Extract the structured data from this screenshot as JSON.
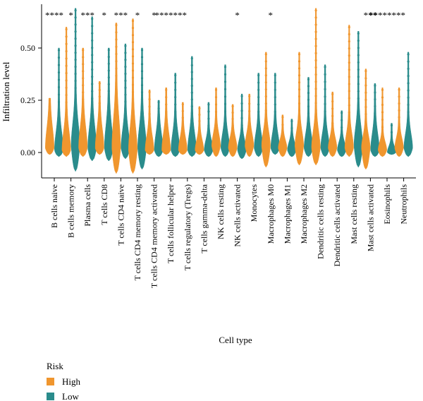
{
  "chart_data": {
    "type": "violin",
    "ylabel": "Infiltration level",
    "xlabel": "Cell type",
    "yticks": [
      "0.00",
      "0.25",
      "0.50"
    ],
    "ylim": [
      -0.1,
      0.72
    ],
    "legend": {
      "title": "Risk",
      "placement": "bottom-left",
      "entries": [
        {
          "name": "High",
          "color": "#F0962E"
        },
        {
          "name": "Low",
          "color": "#2A8C8C"
        }
      ]
    },
    "categories": [
      "B cells naive",
      "B cells memory",
      "Plasma cells",
      "T cells CD8",
      "T cells CD4 naive",
      "T cells CD4 memory resting",
      "T cells CD4 memory activated",
      "T cells follicular helper",
      "T cells regulatory (Tregs)",
      "T cells gamma-delta",
      "NK cells resting",
      "NK cells activated",
      "Monocytes",
      "Macrophages M0",
      "Macrophages M1",
      "Macrophages M2",
      "Dendritic cells resting",
      "Dendritic cells activated",
      "Mast cells resting",
      "Mast cells activated",
      "Eosinophils",
      "Neutrophils"
    ],
    "significance": [
      "****",
      "*",
      "***",
      "*",
      "***",
      "*",
      "*",
      "*******",
      "",
      "",
      "",
      "*",
      "",
      "*",
      "",
      "",
      "",
      "",
      "",
      "***",
      "********",
      ""
    ],
    "series": [
      {
        "name": "High",
        "min": [
          -0.01,
          -0.02,
          -0.02,
          -0.01,
          -0.1,
          -0.1,
          -0.01,
          -0.01,
          -0.01,
          -0.01,
          -0.02,
          -0.02,
          -0.02,
          -0.07,
          -0.02,
          -0.06,
          -0.06,
          -0.02,
          -0.02,
          -0.08,
          -0.02,
          -0.02
        ],
        "max": [
          0.26,
          0.6,
          0.5,
          0.34,
          0.62,
          0.64,
          0.3,
          0.31,
          0.24,
          0.22,
          0.31,
          0.23,
          0.28,
          0.48,
          0.18,
          0.48,
          0.69,
          0.29,
          0.61,
          0.4,
          0.31,
          0.31
        ],
        "median": [
          0.02,
          0.01,
          0.02,
          0.02,
          0.02,
          0.01,
          0.01,
          0.01,
          0.01,
          0.01,
          0.03,
          0.02,
          0.03,
          0.03,
          0.02,
          0.03,
          0.02,
          0.02,
          0.02,
          0.02,
          0.01,
          0.02
        ],
        "q3": [
          0.12,
          0.1,
          0.12,
          0.11,
          0.16,
          0.12,
          0.08,
          0.09,
          0.07,
          0.06,
          0.09,
          0.07,
          0.09,
          0.1,
          0.06,
          0.1,
          0.1,
          0.07,
          0.09,
          0.08,
          0.05,
          0.07
        ]
      },
      {
        "name": "Low",
        "min": [
          -0.02,
          -0.09,
          -0.04,
          -0.04,
          -0.03,
          -0.08,
          -0.02,
          -0.02,
          -0.02,
          -0.02,
          -0.02,
          -0.03,
          -0.02,
          -0.01,
          -0.02,
          -0.02,
          -0.02,
          -0.02,
          -0.07,
          -0.02,
          -0.01,
          -0.02
        ],
        "max": [
          0.5,
          0.69,
          0.65,
          0.5,
          0.52,
          0.5,
          0.25,
          0.38,
          0.46,
          0.24,
          0.42,
          0.28,
          0.38,
          0.38,
          0.16,
          0.36,
          0.42,
          0.2,
          0.58,
          0.33,
          0.14,
          0.48
        ],
        "median": [
          0.01,
          0.03,
          0.02,
          0.02,
          0.02,
          0.02,
          0.01,
          0.01,
          0.01,
          0.01,
          0.02,
          0.01,
          0.02,
          0.02,
          0.01,
          0.02,
          0.02,
          0.01,
          0.03,
          0.01,
          0.0,
          0.02
        ],
        "q3": [
          0.1,
          0.14,
          0.12,
          0.13,
          0.11,
          0.12,
          0.09,
          0.09,
          0.09,
          0.06,
          0.09,
          0.06,
          0.09,
          0.09,
          0.05,
          0.09,
          0.09,
          0.05,
          0.12,
          0.09,
          0.03,
          0.09
        ]
      }
    ]
  }
}
